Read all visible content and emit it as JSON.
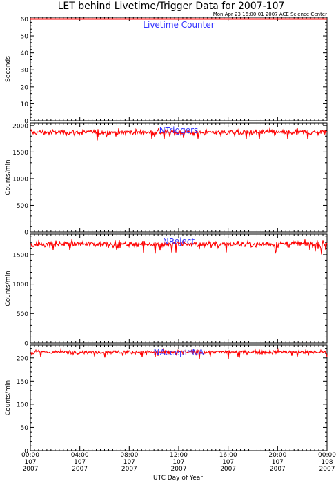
{
  "chart_title": "LET behind Livetime/Trigger Data for 2007-107",
  "timestamp": "Mon Apr 23 16:00:01 2007 ACE Science Center",
  "xlabel": "UTC Day of Year",
  "colors": {
    "series": "#ff0000",
    "panel_title": "#3333ff",
    "axes": "#000000"
  },
  "chart_data": [
    {
      "type": "line",
      "title": "Livetime Counter",
      "ylabel": "Seconds",
      "ylim": [
        0,
        61
      ],
      "yticks": [
        0,
        10,
        20,
        30,
        40,
        50,
        60
      ],
      "mean": 60,
      "noise": 0,
      "xlim": [
        "00:00",
        "24:00"
      ]
    },
    {
      "type": "line",
      "title": "NTriggers",
      "ylabel": "Counts/min",
      "ylim": [
        0,
        2050
      ],
      "yticks": [
        0,
        500,
        1000,
        1500,
        2000
      ],
      "mean": 1870,
      "noise": 45,
      "xlim": [
        "00:00",
        "24:00"
      ]
    },
    {
      "type": "line",
      "title": "NReject",
      "ylabel": "Counts/min",
      "ylim": [
        0,
        1850
      ],
      "yticks": [
        0,
        500,
        1000,
        1500
      ],
      "mean": 1680,
      "noise": 45,
      "xlim": [
        "00:00",
        "24:00"
      ]
    },
    {
      "type": "line",
      "title": "NAccept*NA",
      "ylabel": "Counts/min",
      "ylim": [
        0,
        228
      ],
      "yticks": [
        0,
        50,
        100,
        150,
        200
      ],
      "mean": 213,
      "noise": 3.5,
      "xlim": [
        "00:00",
        "24:00"
      ]
    }
  ],
  "x_ticks": [
    {
      "time": "00:00",
      "doy": "107",
      "year": "2007"
    },
    {
      "time": "04:00",
      "doy": "107",
      "year": "2007"
    },
    {
      "time": "08:00",
      "doy": "107",
      "year": "2007"
    },
    {
      "time": "12:00",
      "doy": "107",
      "year": "2007"
    },
    {
      "time": "16:00",
      "doy": "107",
      "year": "2007"
    },
    {
      "time": "20:00",
      "doy": "107",
      "year": "2007"
    },
    {
      "time": "00:00",
      "doy": "108",
      "year": "2007"
    }
  ]
}
